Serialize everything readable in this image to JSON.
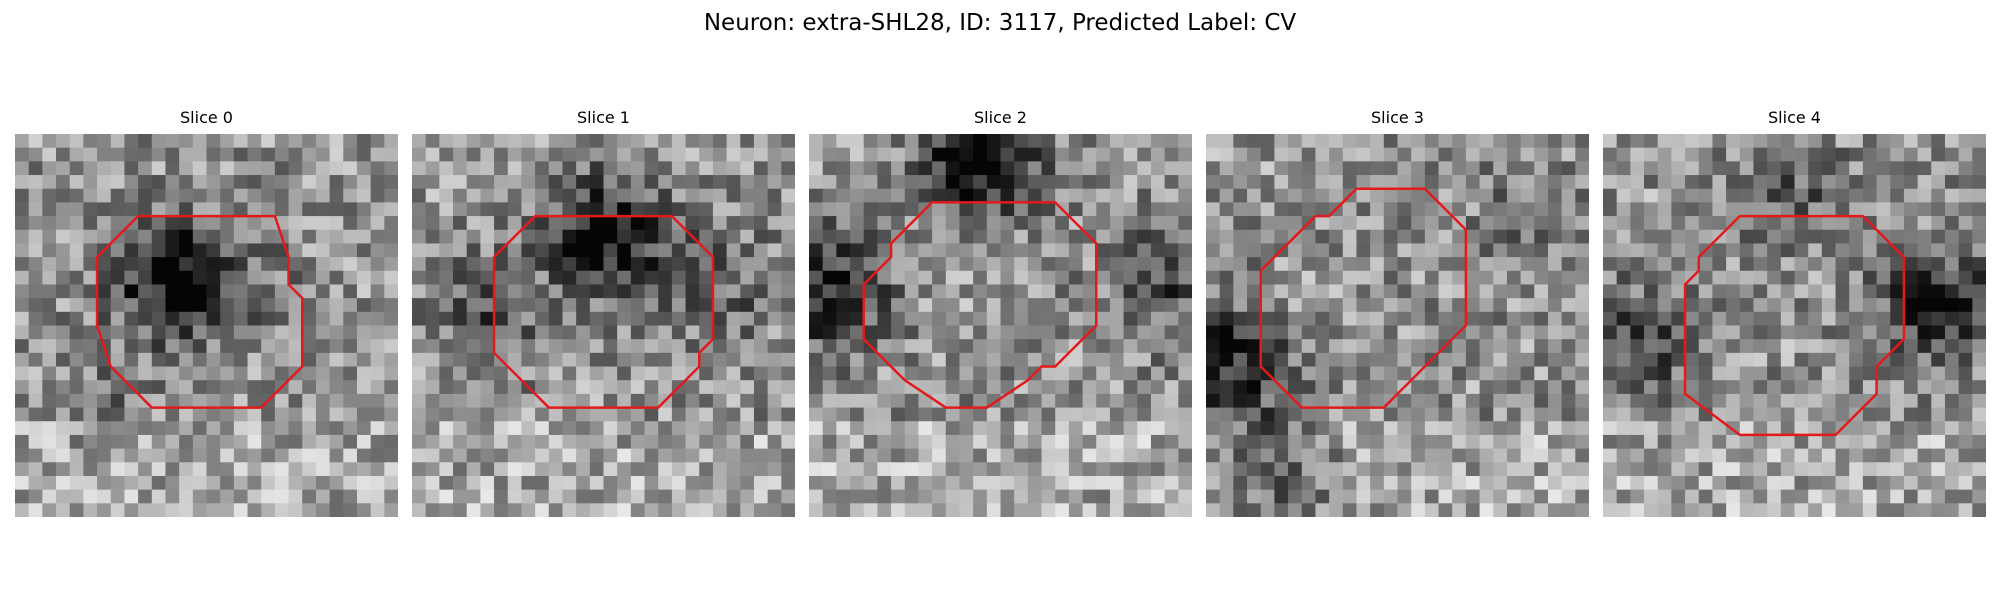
{
  "figure": {
    "title": "Neuron: extra-SHL28, ID: 3117, Predicted Label: CV",
    "contour_color": "#e31a1c",
    "colormap": "gray"
  },
  "panels": [
    {
      "title": "Slice 0",
      "contour": [
        [
          12,
          6
        ],
        [
          15,
          6
        ],
        [
          19,
          6
        ],
        [
          20,
          9
        ],
        [
          20,
          11
        ],
        [
          21,
          12
        ],
        [
          21,
          17
        ],
        [
          18,
          20
        ],
        [
          15,
          20
        ],
        [
          10,
          20
        ],
        [
          7,
          17
        ],
        [
          6,
          14
        ],
        [
          6,
          9
        ],
        [
          9,
          6
        ],
        [
          12,
          6
        ]
      ],
      "dark_spots": [
        [
          11,
          10,
          0.55
        ],
        [
          16,
          11,
          0.15
        ],
        [
          6,
          19,
          0.1
        ]
      ]
    },
    {
      "title": "Slice 1",
      "contour": [
        [
          10,
          6
        ],
        [
          13,
          6
        ],
        [
          16,
          6
        ],
        [
          19,
          6
        ],
        [
          22,
          9
        ],
        [
          22,
          15
        ],
        [
          21,
          16
        ],
        [
          21,
          17
        ],
        [
          18,
          20
        ],
        [
          13,
          20
        ],
        [
          10,
          20
        ],
        [
          6,
          16
        ],
        [
          6,
          9
        ],
        [
          9,
          6
        ],
        [
          10,
          6
        ]
      ],
      "dark_spots": [
        [
          14,
          7,
          0.55
        ],
        [
          5,
          13,
          0.25
        ],
        [
          22,
          11,
          0.2
        ]
      ]
    },
    {
      "title": "Slice 2",
      "contour": [
        [
          11,
          5
        ],
        [
          16,
          5
        ],
        [
          18,
          5
        ],
        [
          21,
          8
        ],
        [
          21,
          14
        ],
        [
          18,
          17
        ],
        [
          17,
          17
        ],
        [
          16,
          18
        ],
        [
          13,
          20
        ],
        [
          10,
          20
        ],
        [
          7,
          18
        ],
        [
          4,
          15
        ],
        [
          4,
          11
        ],
        [
          5,
          10
        ],
        [
          6,
          9
        ],
        [
          6,
          8
        ],
        [
          8,
          6
        ],
        [
          9,
          5
        ],
        [
          11,
          5
        ]
      ],
      "dark_spots": [
        [
          12,
          1,
          0.6
        ],
        [
          1,
          11,
          0.45
        ],
        [
          26,
          10,
          0.3
        ]
      ]
    },
    {
      "title": "Slice 3",
      "contour": [
        [
          11,
          4
        ],
        [
          13,
          4
        ],
        [
          16,
          4
        ],
        [
          19,
          7
        ],
        [
          19,
          14
        ],
        [
          16,
          17
        ],
        [
          13,
          20
        ],
        [
          10,
          20
        ],
        [
          7,
          20
        ],
        [
          4,
          17
        ],
        [
          4,
          10
        ],
        [
          7,
          7
        ],
        [
          8,
          6
        ],
        [
          9,
          6
        ],
        [
          11,
          4
        ]
      ],
      "dark_spots": [
        [
          1,
          16,
          0.45
        ],
        [
          24,
          6,
          0.15
        ],
        [
          5,
          24,
          0.3
        ]
      ]
    },
    {
      "title": "Slice 4",
      "contour": [
        [
          11,
          6
        ],
        [
          15,
          6
        ],
        [
          19,
          6
        ],
        [
          20,
          7
        ],
        [
          22,
          9
        ],
        [
          22,
          15
        ],
        [
          21,
          16
        ],
        [
          20,
          17
        ],
        [
          20,
          19
        ],
        [
          17,
          22
        ],
        [
          14,
          22
        ],
        [
          10,
          22
        ],
        [
          6,
          19
        ],
        [
          6,
          11
        ],
        [
          7,
          10
        ],
        [
          7,
          9
        ],
        [
          10,
          6
        ],
        [
          11,
          6
        ]
      ],
      "dark_spots": [
        [
          2,
          15,
          0.35
        ],
        [
          24,
          12,
          0.45
        ],
        [
          14,
          4,
          0.2
        ]
      ]
    }
  ]
}
